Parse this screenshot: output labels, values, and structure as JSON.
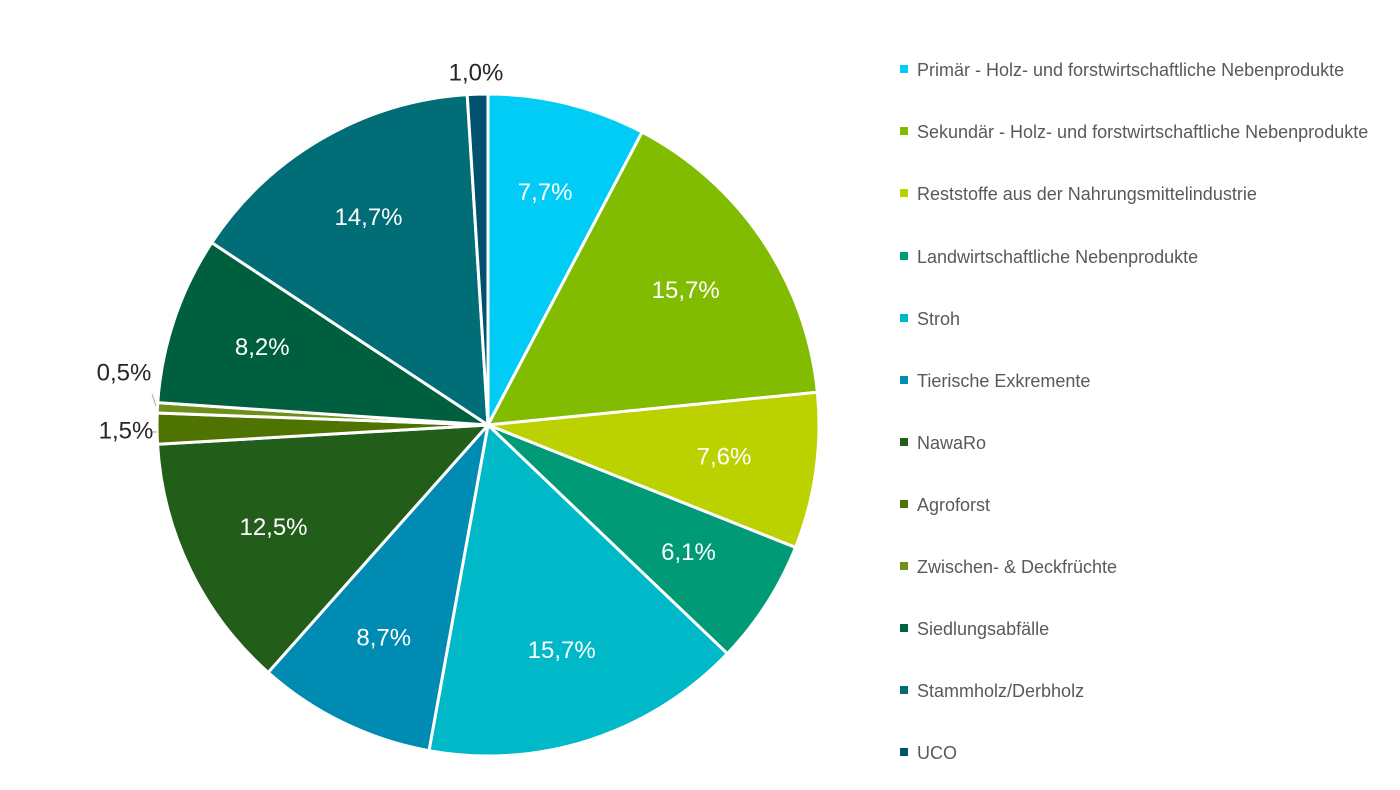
{
  "chart_data": {
    "type": "pie",
    "title": "",
    "slices": [
      {
        "label": "Primär - Holz- und forstwirtschaftliche Nebenprodukte",
        "value": 7.7,
        "display": "7,7%",
        "color": "#00CCF5",
        "label_color": "#ffffff"
      },
      {
        "label": "Sekundär - Holz- und forstwirtschaftliche Nebenprodukte",
        "value": 15.7,
        "display": "15,7%",
        "color": "#82BC00",
        "label_color": "#ffffff"
      },
      {
        "label": "Reststoffe aus der Nahrungsmittelindustrie",
        "value": 7.6,
        "display": "7,6%",
        "color": "#BBD100",
        "label_color": "#ffffff"
      },
      {
        "label": "Landwirtschaftliche Nebenprodukte",
        "value": 6.1,
        "display": "6,1%",
        "color": "#009A76",
        "label_color": "#ffffff"
      },
      {
        "label": "Stroh",
        "value": 15.7,
        "display": "15,7%",
        "color": "#00B9C8",
        "label_color": "#ffffff"
      },
      {
        "label": "Tierische Exkremente",
        "value": 8.7,
        "display": "8,7%",
        "color": "#008BB2",
        "label_color": "#ffffff"
      },
      {
        "label": "NawaRo",
        "value": 12.5,
        "display": "12,5%",
        "color": "#225E1A",
        "label_color": "#ffffff"
      },
      {
        "label": "Agroforst",
        "value": 1.5,
        "display": "1,5%",
        "color": "#4F7300",
        "label_color": "#262626",
        "outside": true
      },
      {
        "label": "Zwischen- & Deckfrüchte",
        "value": 0.5,
        "display": "0,5%",
        "color": "#6E8F1A",
        "label_color": "#262626",
        "outside": true
      },
      {
        "label": "Siedlungsabfälle",
        "value": 8.2,
        "display": "8,2%",
        "color": "#005F3E",
        "label_color": "#ffffff"
      },
      {
        "label": "Stammholz/Derbholz",
        "value": 14.7,
        "display": "14,7%",
        "color": "#006D77",
        "label_color": "#ffffff"
      },
      {
        "label": "UCO",
        "value": 1.0,
        "display": "1,0%",
        "color": "#00506E",
        "label_color": "#262626",
        "outside": true
      }
    ],
    "legend_position": "right"
  }
}
